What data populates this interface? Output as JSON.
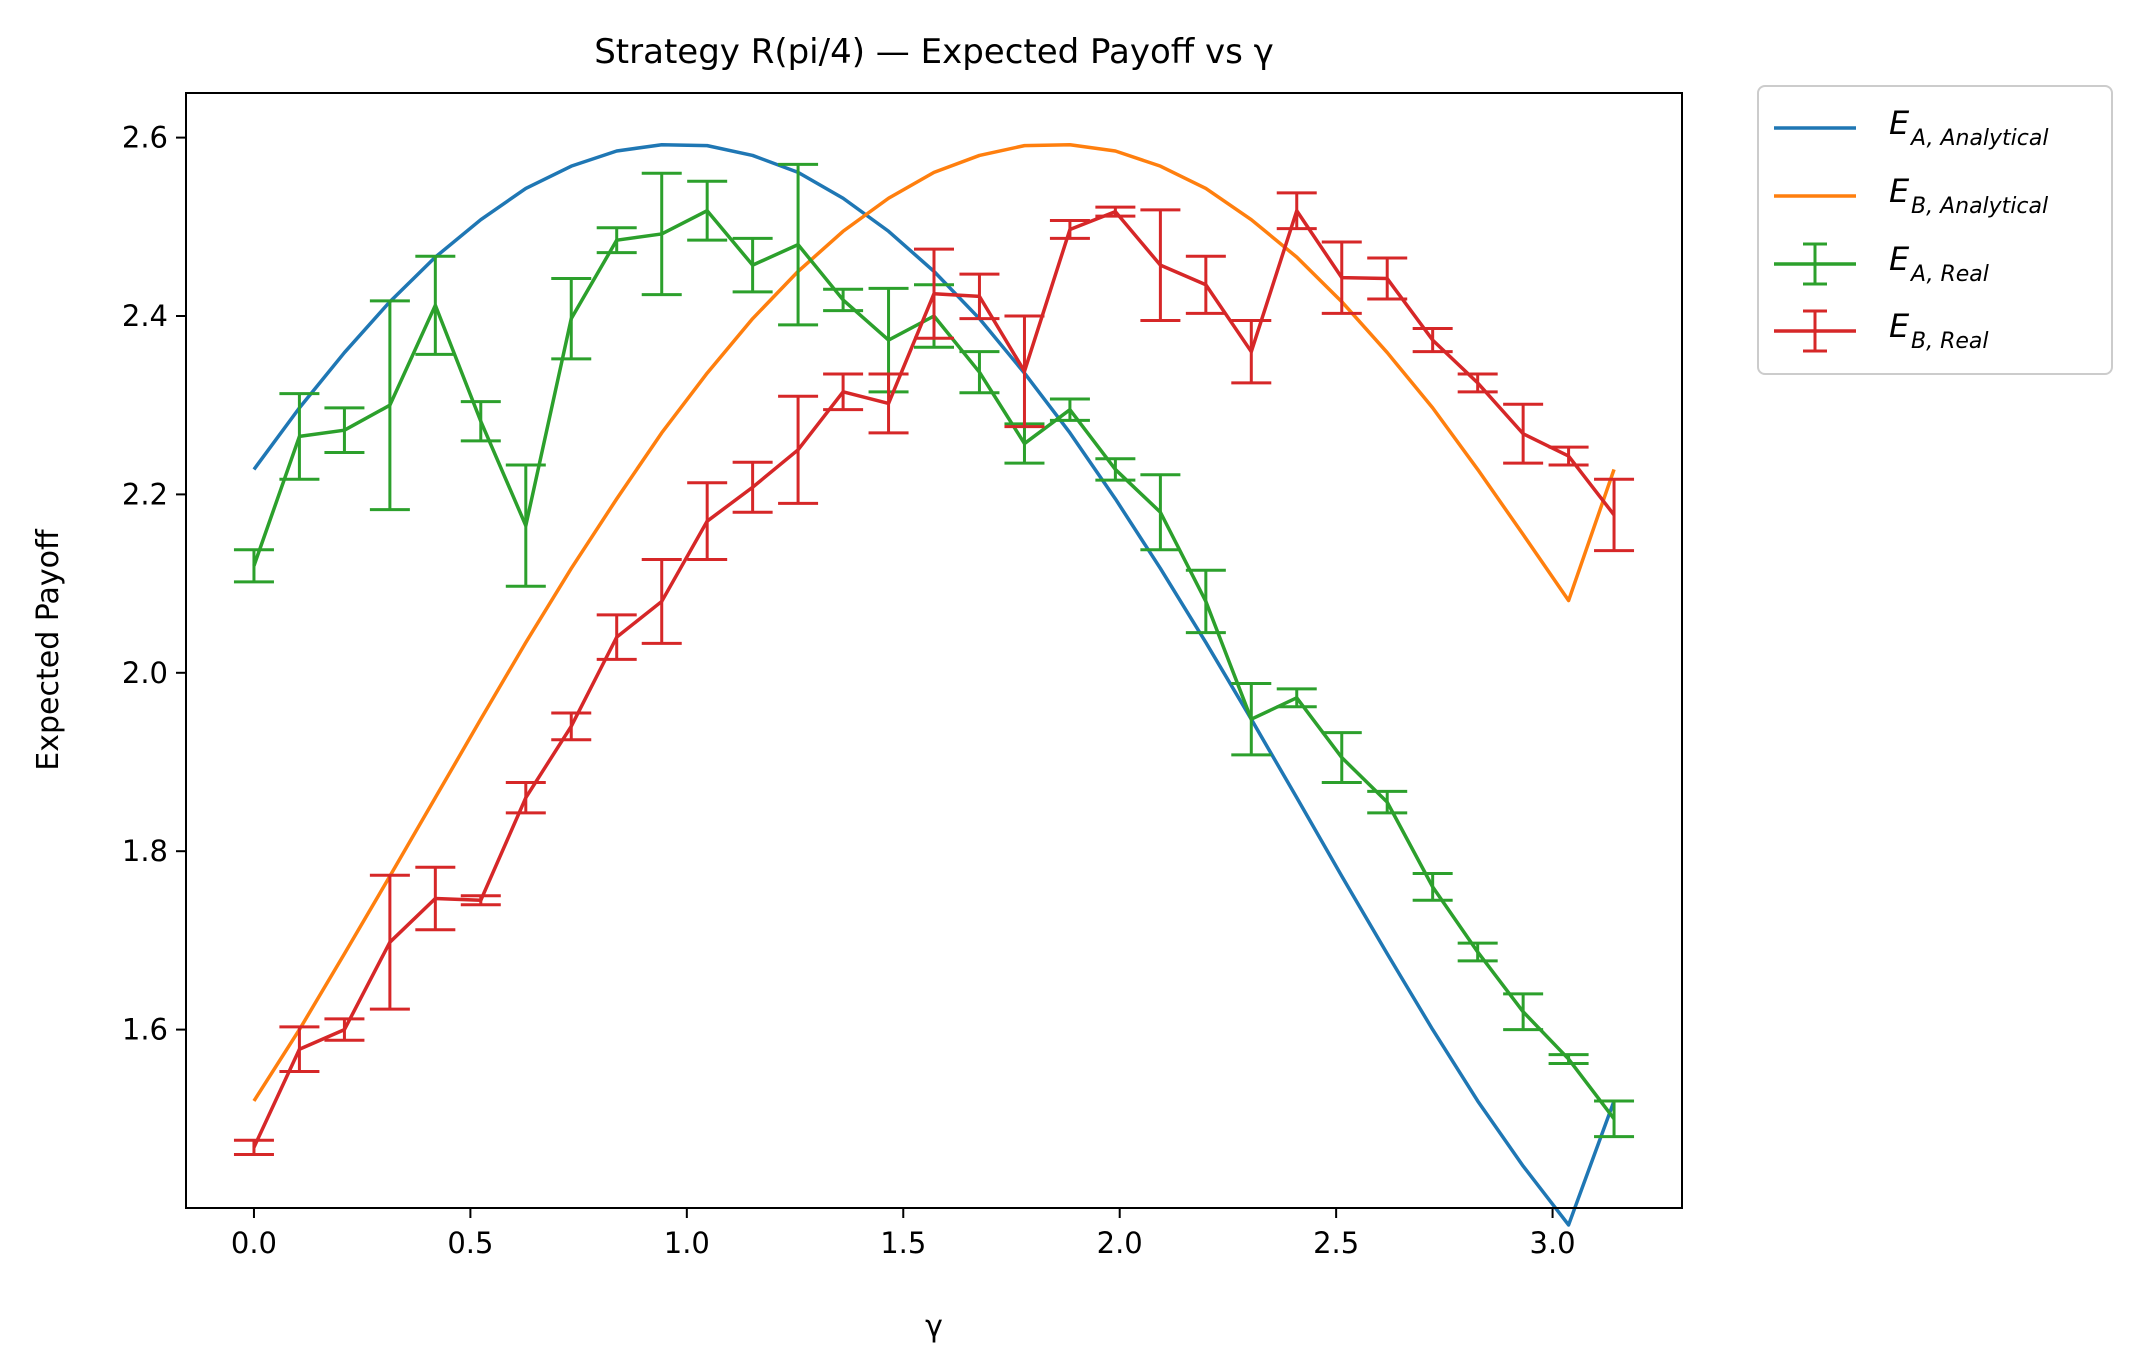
{
  "chart_data": {
    "type": "line",
    "title": "Strategy R(pi/4) — Expected Payoff vs γ",
    "xlabel": "γ",
    "ylabel": "Expected Payoff",
    "xlim": [
      -0.157,
      3.299
    ],
    "ylim": [
      1.4,
      2.65
    ],
    "xticks": [
      0.0,
      0.5,
      1.0,
      1.5,
      2.0,
      2.5,
      3.0
    ],
    "xtick_labels": [
      "0.0",
      "0.5",
      "1.0",
      "1.5",
      "2.0",
      "2.5",
      "3.0"
    ],
    "yticks": [
      1.6,
      1.8,
      2.0,
      2.2,
      2.4,
      2.6
    ],
    "ytick_labels": [
      "1.6",
      "1.8",
      "2.0",
      "2.2",
      "2.4",
      "2.6"
    ],
    "grid": false,
    "legend_position": "outside-right-top",
    "x": [
      0.0,
      0.105,
      0.209,
      0.314,
      0.419,
      0.524,
      0.628,
      0.733,
      0.838,
      0.942,
      1.047,
      1.152,
      1.257,
      1.361,
      1.466,
      1.571,
      1.676,
      1.78,
      1.885,
      1.99,
      2.094,
      2.199,
      2.304,
      2.409,
      2.513,
      2.618,
      2.723,
      2.827,
      2.932,
      3.037,
      3.142
    ],
    "series": [
      {
        "name": "E_A,Analytical",
        "legend_main": "E",
        "legend_sub": "A, Analytical",
        "color": "#1f77b4",
        "kind": "line",
        "values": [
          2.228,
          2.297,
          2.359,
          2.416,
          2.466,
          2.508,
          2.543,
          2.568,
          2.585,
          2.592,
          2.591,
          2.58,
          2.561,
          2.532,
          2.495,
          2.45,
          2.397,
          2.336,
          2.269,
          2.195,
          2.117,
          2.034,
          1.948,
          1.86,
          1.772,
          1.685,
          1.6,
          1.52,
          1.447,
          1.381,
          1.52
        ]
      },
      {
        "name": "E_B,Analytical",
        "legend_main": "E",
        "legend_sub": "B, Analytical",
        "color": "#ff7f0e",
        "kind": "line",
        "values": [
          1.52,
          1.6,
          1.685,
          1.772,
          1.86,
          1.948,
          2.034,
          2.117,
          2.195,
          2.269,
          2.336,
          2.397,
          2.45,
          2.495,
          2.532,
          2.561,
          2.58,
          2.591,
          2.592,
          2.585,
          2.568,
          2.543,
          2.508,
          2.466,
          2.416,
          2.359,
          2.297,
          2.228,
          2.155,
          2.081,
          2.228
        ]
      },
      {
        "name": "E_A,Real",
        "legend_main": "E",
        "legend_sub": "A, Real",
        "color": "#2ca02c",
        "kind": "errorbar",
        "values": [
          2.12,
          2.265,
          2.272,
          2.3,
          2.412,
          2.282,
          2.165,
          2.397,
          2.485,
          2.492,
          2.518,
          2.457,
          2.48,
          2.418,
          2.373,
          2.4,
          2.337,
          2.257,
          2.295,
          2.228,
          2.18,
          2.08,
          1.948,
          1.972,
          1.905,
          1.855,
          1.76,
          1.687,
          1.62,
          1.567,
          1.5
        ],
        "errors": [
          0.018,
          0.048,
          0.025,
          0.117,
          0.055,
          0.022,
          0.068,
          0.045,
          0.014,
          0.068,
          0.033,
          0.03,
          0.09,
          0.012,
          0.058,
          0.035,
          0.023,
          0.022,
          0.012,
          0.012,
          0.042,
          0.035,
          0.04,
          0.01,
          0.028,
          0.012,
          0.015,
          0.01,
          0.02,
          0.005,
          0.02
        ]
      },
      {
        "name": "E_B,Real",
        "legend_main": "E",
        "legend_sub": "B, Real",
        "color": "#d62728",
        "kind": "errorbar",
        "values": [
          1.468,
          1.578,
          1.6,
          1.698,
          1.747,
          1.745,
          1.86,
          1.94,
          2.04,
          2.08,
          2.17,
          2.208,
          2.25,
          2.315,
          2.302,
          2.425,
          2.422,
          2.338,
          2.497,
          2.517,
          2.457,
          2.435,
          2.36,
          2.518,
          2.443,
          2.442,
          2.373,
          2.325,
          2.268,
          2.243,
          2.177
        ],
        "errors": [
          0.008,
          0.025,
          0.012,
          0.075,
          0.035,
          0.005,
          0.017,
          0.015,
          0.025,
          0.047,
          0.043,
          0.028,
          0.06,
          0.02,
          0.033,
          0.05,
          0.025,
          0.062,
          0.01,
          0.005,
          0.062,
          0.032,
          0.035,
          0.02,
          0.04,
          0.023,
          0.013,
          0.01,
          0.033,
          0.01,
          0.04
        ]
      }
    ]
  }
}
